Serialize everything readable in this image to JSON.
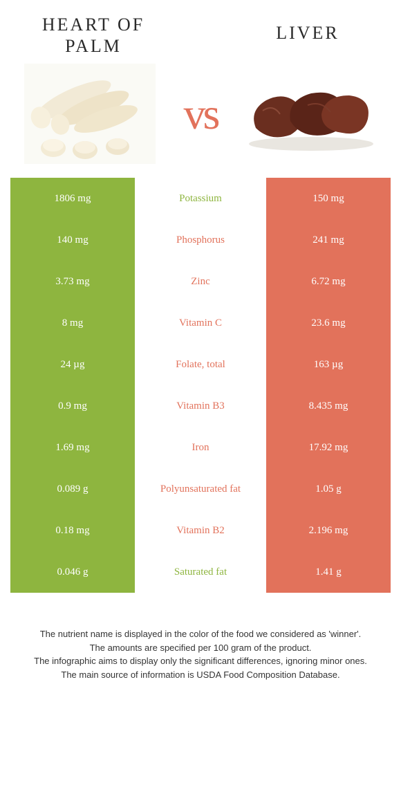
{
  "left": {
    "name": "Heart of palm"
  },
  "right": {
    "name": "Liver"
  },
  "vs": "vs",
  "colors": {
    "green": "#8eb53f",
    "coral": "#e2725b"
  },
  "rows": [
    {
      "nutrient": "Potassium",
      "left": "1806 mg",
      "right": "150 mg",
      "winner": "green"
    },
    {
      "nutrient": "Phosphorus",
      "left": "140 mg",
      "right": "241 mg",
      "winner": "coral"
    },
    {
      "nutrient": "Zinc",
      "left": "3.73 mg",
      "right": "6.72 mg",
      "winner": "coral"
    },
    {
      "nutrient": "Vitamin C",
      "left": "8 mg",
      "right": "23.6 mg",
      "winner": "coral"
    },
    {
      "nutrient": "Folate, total",
      "left": "24 µg",
      "right": "163 µg",
      "winner": "coral"
    },
    {
      "nutrient": "Vitamin B3",
      "left": "0.9 mg",
      "right": "8.435 mg",
      "winner": "coral"
    },
    {
      "nutrient": "Iron",
      "left": "1.69 mg",
      "right": "17.92 mg",
      "winner": "coral"
    },
    {
      "nutrient": "Polyunsaturated fat",
      "left": "0.089 g",
      "right": "1.05 g",
      "winner": "coral"
    },
    {
      "nutrient": "Vitamin B2",
      "left": "0.18 mg",
      "right": "2.196 mg",
      "winner": "coral"
    },
    {
      "nutrient": "Saturated fat",
      "left": "0.046 g",
      "right": "1.41 g",
      "winner": "green"
    }
  ],
  "footer": [
    "The nutrient name is displayed in the color of the food we considered as 'winner'.",
    "The amounts are specified per 100 gram of the product.",
    "The infographic aims to display only the significant differences, ignoring minor ones.",
    "The main source of information is USDA Food Composition Database."
  ]
}
